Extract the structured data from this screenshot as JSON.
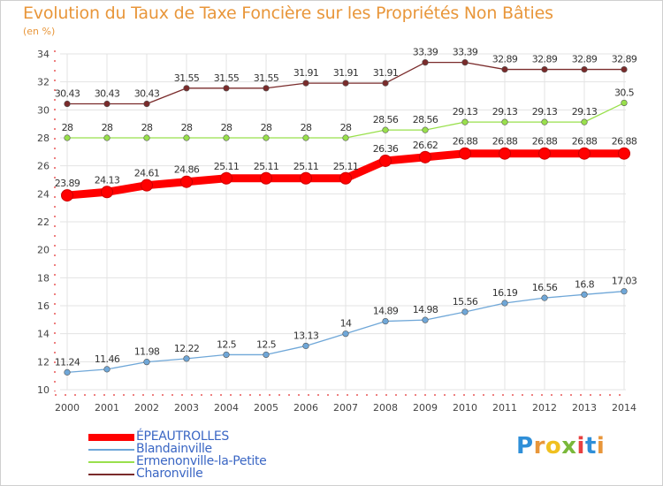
{
  "chart_data": {
    "type": "line",
    "title": "Evolution du Taux de Taxe Foncière sur les Propriétés Non Bâties",
    "ylabel": "(en %)",
    "xlabel": "",
    "x": [
      "2000",
      "2001",
      "2002",
      "2003",
      "2004",
      "2005",
      "2006",
      "2007",
      "2008",
      "2009",
      "2010",
      "2011",
      "2012",
      "2013",
      "2014"
    ],
    "ylim": [
      10,
      34
    ],
    "yticks": [
      10,
      12,
      14,
      16,
      18,
      20,
      22,
      24,
      26,
      28,
      30,
      32,
      34
    ],
    "grid": true,
    "series": [
      {
        "name": "ÉPEAUTROLLES",
        "color": "#ff0000",
        "values": [
          23.89,
          24.13,
          24.61,
          24.86,
          25.11,
          25.11,
          25.11,
          25.11,
          26.36,
          26.62,
          26.88,
          26.88,
          26.88,
          26.88,
          26.88
        ],
        "labels": [
          "23.89",
          "24.13",
          "24.61",
          "24.86",
          "25.11",
          "25.11",
          "25.11",
          "25.11",
          "26.36",
          "26.62",
          "26.88",
          "26.88",
          "26.88",
          "26.88",
          "26.88"
        ]
      },
      {
        "name": "Blandainville",
        "color": "#6fa7d8",
        "values": [
          11.24,
          11.46,
          11.98,
          12.22,
          12.5,
          12.5,
          13.13,
          14,
          14.89,
          14.98,
          15.56,
          16.19,
          16.56,
          16.8,
          17.03
        ],
        "labels": [
          "11.24",
          "11.46",
          "11.98",
          "12.22",
          "12.5",
          "12.5",
          "13.13",
          "14",
          "14.89",
          "14.98",
          "15.56",
          "16.19",
          "16.56",
          "16.8",
          "17.03"
        ]
      },
      {
        "name": "Ermenonville-la-Petite",
        "color": "#99e04c",
        "values": [
          28,
          28,
          28,
          28,
          28,
          28,
          28,
          28,
          28.56,
          28.56,
          29.13,
          29.13,
          29.13,
          29.13,
          30.5
        ],
        "labels": [
          "28",
          "28",
          "28",
          "28",
          "28",
          "28",
          "28",
          "28",
          "28.56",
          "28.56",
          "29.13",
          "29.13",
          "29.13",
          "29.13",
          "30.5"
        ]
      },
      {
        "name": "Charonville",
        "color": "#7a2b2b",
        "values": [
          30.43,
          30.43,
          30.43,
          31.55,
          31.55,
          31.55,
          31.91,
          31.91,
          31.91,
          33.39,
          33.39,
          32.89,
          32.89,
          32.89,
          32.89
        ],
        "labels": [
          "30.43",
          "30.43",
          "30.43",
          "31.55",
          "31.55",
          "31.55",
          "31.91",
          "31.91",
          "31.91",
          "33.39",
          "33.39",
          "32.89",
          "32.89",
          "32.89",
          "32.89"
        ]
      }
    ]
  },
  "logo": {
    "letters": [
      "P",
      "r",
      "o",
      "x",
      "i",
      "t",
      "i"
    ],
    "colors": [
      "#2f8fd8",
      "#e8963a",
      "#f0c020",
      "#7ab83a",
      "#e84040",
      "#2f8fd8",
      "#e8963a"
    ]
  }
}
